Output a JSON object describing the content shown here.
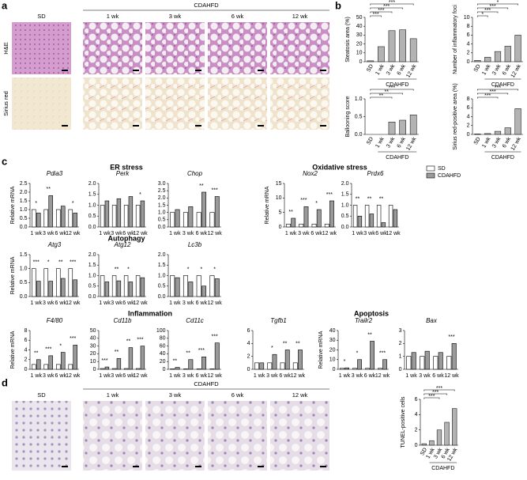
{
  "panel_labels": [
    "a",
    "b",
    "c",
    "d"
  ],
  "histology": [
    {
      "group": "CDAHFD",
      "columns": [
        "SD",
        "1 wk",
        "3 wk",
        "6 wk",
        "12 wk"
      ],
      "rows": [
        "H&E",
        "Sirius red"
      ]
    },
    {
      "group": "CDAHFD",
      "columns": [
        "SD",
        "1 wk",
        "3 wk",
        "6 wk",
        "12 wk"
      ]
    }
  ],
  "section_titles": [
    "ER stress",
    "Oxidative stress",
    "Autophagy",
    "Inflammation",
    "Apoptosis"
  ],
  "chart_data": [
    {
      "type": "bar",
      "ylabel": "Steatosis area (%)",
      "categories": [
        "SD",
        "1 wk",
        "3 wk",
        "6 wk",
        "12 wk"
      ],
      "group_label": "CDAHFD",
      "values": [
        1,
        17,
        35,
        36,
        26
      ],
      "color": "#b3b3b3",
      "ylim": [
        0,
        50
      ],
      "yticks": [
        0,
        10,
        20,
        30,
        40,
        50
      ],
      "significance": [
        null,
        "***",
        "***",
        "***",
        "***"
      ]
    },
    {
      "type": "bar",
      "ylabel": "Number of inflammatory foci",
      "categories": [
        "SD",
        "1 wk",
        "3 wk",
        "6 wk",
        "12 wk"
      ],
      "group_label": "CDAHFD",
      "values": [
        0.3,
        1,
        2.3,
        3.5,
        6
      ],
      "color": "#b3b3b3",
      "ylim": [
        0,
        10
      ],
      "yticks": [
        0,
        2,
        4,
        6,
        8,
        10
      ],
      "significance": [
        null,
        "*",
        "***",
        "***",
        "*"
      ]
    },
    {
      "type": "bar",
      "ylabel": "Ballooning score",
      "categories": [
        "SD",
        "1 wk",
        "3 wk",
        "6 wk",
        "12 wk"
      ],
      "group_label": "CDAHFD",
      "values": [
        0,
        0,
        0.35,
        0.4,
        0.55
      ],
      "color": "#b3b3b3",
      "ylim": [
        0,
        1
      ],
      "yticks": [
        {
          "value": 0,
          "label": "0.0"
        },
        0.5,
        {
          "value": 1,
          "label": "1.0"
        }
      ],
      "significance": [
        null,
        null,
        "**",
        "**",
        "***"
      ]
    },
    {
      "type": "bar",
      "ylabel": "Sirius red-positive area (%)",
      "categories": [
        "SD",
        "1 wk",
        "3 wk",
        "6 wk",
        "12 wk"
      ],
      "group_label": "CDAHFD",
      "values": [
        0.1,
        0.2,
        0.7,
        1.5,
        5.8
      ],
      "color": "#b3b3b3",
      "ylim": [
        0,
        8
      ],
      "yticks": [
        0,
        2,
        4,
        6,
        8
      ],
      "significance": [
        null,
        null,
        "***",
        "***",
        "***"
      ]
    },
    {
      "type": "grouped_bar",
      "title": "Pdia3",
      "ylabel": "Relative mRNA",
      "categories": [
        "1 wk",
        "3 wk",
        "6 wk",
        "12 wk"
      ],
      "series": [
        {
          "name": "SD",
          "color": "#ffffff",
          "values": [
            1,
            1,
            1,
            1
          ]
        },
        {
          "name": "CDAHFD",
          "color": "#9a9a9a",
          "values": [
            0.8,
            1.8,
            1.2,
            0.8
          ]
        }
      ],
      "ylim": [
        0,
        2.5
      ],
      "yticks": [
        {
          "value": 0,
          "label": "0.0"
        },
        0.5,
        {
          "value": 1,
          "label": "1.0"
        },
        1.5,
        {
          "value": 2,
          "label": "2.0"
        },
        2.5
      ],
      "significance": [
        "*",
        "**",
        null,
        "*"
      ]
    },
    {
      "type": "grouped_bar",
      "title": "Perk",
      "categories": [
        "1 wk",
        "3 wk",
        "6 wk",
        "12 wk"
      ],
      "series": [
        {
          "color": "#ffffff",
          "values": [
            1,
            1,
            1,
            1
          ]
        },
        {
          "color": "#9a9a9a",
          "values": [
            1.2,
            1.3,
            1.4,
            1.2
          ]
        }
      ],
      "ylim": [
        0,
        2
      ],
      "yticks": [
        {
          "value": 0,
          "label": "0.0"
        },
        0.5,
        {
          "value": 1,
          "label": "1.0"
        },
        1.5,
        {
          "value": 2,
          "label": "2.0"
        }
      ],
      "significance": [
        null,
        null,
        null,
        "*"
      ]
    },
    {
      "type": "grouped_bar",
      "title": "Chop",
      "categories": [
        "1 wk",
        "3 wk",
        "6 wk",
        "12 wk"
      ],
      "series": [
        {
          "color": "#ffffff",
          "values": [
            1,
            1,
            1,
            1
          ]
        },
        {
          "color": "#9a9a9a",
          "values": [
            1.2,
            1.4,
            2.4,
            2.1
          ]
        }
      ],
      "ylim": [
        0,
        3
      ],
      "yticks": [
        {
          "value": 0,
          "label": "0.0"
        },
        0.5,
        {
          "value": 1,
          "label": "1.0"
        },
        1.5,
        {
          "value": 2,
          "label": "2.0"
        },
        2.5,
        {
          "value": 3,
          "label": "3.0"
        }
      ],
      "significance": [
        null,
        null,
        "**",
        "***"
      ]
    },
    {
      "type": "grouped_bar",
      "title": "Nox2",
      "ylabel": "Relative mRNA",
      "categories": [
        "1 wk",
        "3 wk",
        "6 wk",
        "12 wk"
      ],
      "series": [
        {
          "color": "#ffffff",
          "values": [
            1,
            1,
            1,
            1
          ]
        },
        {
          "color": "#9a9a9a",
          "values": [
            3,
            7,
            6,
            9
          ]
        }
      ],
      "ylim": [
        0,
        15
      ],
      "yticks": [
        0,
        5,
        10,
        15
      ],
      "significance": [
        "**",
        "***",
        "*",
        "***"
      ]
    },
    {
      "type": "grouped_bar",
      "title": "Prdx6",
      "categories": [
        "1 wk",
        "3 wk",
        "6 wk",
        "12 wk"
      ],
      "series": [
        {
          "color": "#ffffff",
          "values": [
            1,
            1,
            1,
            1
          ]
        },
        {
          "color": "#9a9a9a",
          "values": [
            0.5,
            0.6,
            0.2,
            0.8
          ]
        }
      ],
      "ylim": [
        0,
        2
      ],
      "yticks": [
        {
          "value": 0,
          "label": "0.0"
        },
        0.5,
        {
          "value": 1,
          "label": "1.0"
        },
        1.5,
        {
          "value": 2,
          "label": "2.0"
        }
      ],
      "significance": [
        "**",
        "**",
        "**",
        null
      ]
    },
    {
      "type": "grouped_bar",
      "title": "Atg3",
      "ylabel": "Relative mRNA",
      "categories": [
        "1 wk",
        "3 wk",
        "6 wk",
        "12 wk"
      ],
      "series": [
        {
          "color": "#ffffff",
          "values": [
            1,
            1,
            1,
            1
          ]
        },
        {
          "color": "#9a9a9a",
          "values": [
            0.55,
            0.55,
            0.65,
            0.6
          ]
        }
      ],
      "ylim": [
        0,
        1.5
      ],
      "yticks": [
        {
          "value": 0,
          "label": "0.0"
        },
        0.5,
        {
          "value": 1,
          "label": "1.0"
        },
        1.5
      ],
      "significance": [
        "***",
        "*",
        "**",
        "***"
      ]
    },
    {
      "type": "grouped_bar",
      "title": "Atg12",
      "categories": [
        "1 wk",
        "3 wk",
        "6 wk",
        "12 wk"
      ],
      "series": [
        {
          "color": "#ffffff",
          "values": [
            1,
            1,
            1,
            1
          ]
        },
        {
          "color": "#9a9a9a",
          "values": [
            0.7,
            0.75,
            0.7,
            0.9
          ]
        }
      ],
      "ylim": [
        0,
        2
      ],
      "yticks": [
        {
          "value": 0,
          "label": "0.0"
        },
        0.5,
        {
          "value": 1,
          "label": "1.0"
        },
        1.5,
        {
          "value": 2,
          "label": "2.0"
        }
      ],
      "significance": [
        null,
        "**",
        "*",
        null
      ]
    },
    {
      "type": "grouped_bar",
      "title": "Lc3b",
      "categories": [
        "1 wk",
        "3 wk",
        "6 wk",
        "12 wk"
      ],
      "series": [
        {
          "color": "#ffffff",
          "values": [
            1,
            1,
            1,
            1
          ]
        },
        {
          "color": "#9a9a9a",
          "values": [
            0.9,
            0.7,
            0.5,
            0.85
          ]
        }
      ],
      "ylim": [
        0,
        2
      ],
      "yticks": [
        {
          "value": 0,
          "label": "0.0"
        },
        0.5,
        {
          "value": 1,
          "label": "1.0"
        },
        1.5,
        {
          "value": 2,
          "label": "2.0"
        }
      ],
      "significance": [
        null,
        "*",
        "*",
        "*"
      ]
    },
    {
      "type": "grouped_bar",
      "title": "F4/80",
      "ylabel": "Relative mRNA",
      "categories": [
        "1 wk",
        "3 wk",
        "6 wk",
        "12 wk"
      ],
      "series": [
        {
          "color": "#ffffff",
          "values": [
            1,
            1,
            1,
            1
          ]
        },
        {
          "color": "#9a9a9a",
          "values": [
            2,
            2.8,
            3.5,
            5
          ]
        }
      ],
      "ylim": [
        0,
        8
      ],
      "yticks": [
        0,
        2,
        4,
        6,
        8
      ],
      "significance": [
        "**",
        "***",
        "*",
        "***"
      ]
    },
    {
      "type": "grouped_bar",
      "title": "Cd11b",
      "categories": [
        "1 wk",
        "3 wk",
        "6 wk",
        "12 wk"
      ],
      "series": [
        {
          "color": "#ffffff",
          "values": [
            1,
            1,
            1,
            1
          ]
        },
        {
          "color": "#9a9a9a",
          "values": [
            3,
            14,
            28,
            30
          ]
        }
      ],
      "ylim": [
        0,
        50
      ],
      "yticks": [
        0,
        10,
        20,
        30,
        40,
        50
      ],
      "significance": [
        "***",
        "**",
        "**",
        "***"
      ]
    },
    {
      "type": "grouped_bar",
      "title": "Cd11c",
      "categories": [
        "1 wk",
        "3 wk",
        "6 wk",
        "12 wk"
      ],
      "series": [
        {
          "color": "#ffffff",
          "values": [
            1,
            1,
            1,
            1
          ]
        },
        {
          "color": "#9a9a9a",
          "values": [
            5,
            25,
            32,
            68
          ]
        }
      ],
      "ylim": [
        0,
        100
      ],
      "yticks": [
        0,
        20,
        40,
        60,
        80,
        100
      ],
      "significance": [
        "**",
        "**",
        "***",
        "***"
      ]
    },
    {
      "type": "grouped_bar",
      "title": "Tgfb1",
      "categories": [
        "1 wk",
        "3 wk",
        "6 wk",
        "12 wk"
      ],
      "series": [
        {
          "color": "#ffffff",
          "values": [
            1,
            1,
            1,
            1
          ]
        },
        {
          "color": "#9a9a9a",
          "values": [
            1,
            2.3,
            3,
            3
          ]
        }
      ],
      "ylim": [
        0,
        6
      ],
      "yticks": [
        0,
        2,
        4,
        6
      ],
      "significance": [
        null,
        "*",
        "**",
        "**"
      ]
    },
    {
      "type": "grouped_bar",
      "title": "Trailr2",
      "ylabel": "Relative mRNA",
      "categories": [
        "1 wk",
        "3 wk",
        "6 wk",
        "12 wk"
      ],
      "series": [
        {
          "color": "#ffffff",
          "values": [
            1,
            1,
            1,
            1
          ]
        },
        {
          "color": "#9a9a9a",
          "values": [
            1.5,
            10,
            29,
            10
          ]
        }
      ],
      "ylim": [
        0,
        40
      ],
      "yticks": [
        0,
        10,
        20,
        30,
        40
      ],
      "significance": [
        "*",
        "*",
        "**",
        "***"
      ]
    },
    {
      "type": "grouped_bar",
      "title": "Bax",
      "categories": [
        "1 wk",
        "3 wk",
        "6 wk",
        "12 wk"
      ],
      "series": [
        {
          "color": "#ffffff",
          "values": [
            1,
            1,
            1,
            1
          ]
        },
        {
          "color": "#9a9a9a",
          "values": [
            1.3,
            1.4,
            1.3,
            2
          ]
        }
      ],
      "ylim": [
        0,
        3
      ],
      "yticks": [
        0,
        1,
        2,
        3
      ],
      "significance": [
        null,
        null,
        null,
        "***"
      ]
    },
    {
      "type": "bar",
      "ylabel": "TUNEL-positive cells",
      "categories": [
        "SD",
        "1 wk",
        "3 wk",
        "6 wk",
        "12 wk"
      ],
      "group_label": "CDAHFD",
      "values": [
        0.2,
        0.6,
        2,
        3,
        4.8
      ],
      "color": "#b3b3b3",
      "ylim": [
        0,
        6
      ],
      "yticks": [
        0,
        2,
        4,
        6
      ],
      "significance": [
        null,
        null,
        "***",
        "***",
        "***"
      ]
    }
  ]
}
